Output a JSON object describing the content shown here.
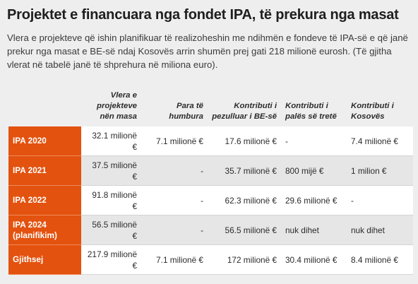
{
  "title": "Projektet e financuara nga fondet IPA, të prekura nga masat",
  "intro": "Vlera e projekteve që ishin planifikuar të realizoheshin me ndihmën e fondeve të IPA-së e që janë prekur nga masat e BE-së ndaj Kosovës arrin shumën prej gati 218 milionë eurosh. (Të gjitha vlerat në tabelë janë të shprehura në miliona euro).",
  "table": {
    "headers": [
      "",
      "Vlera e projekteve nën masa",
      "Para të humbura",
      "Kontributi i pezulluar i BE-së",
      "Kontributi i palës së tretë",
      "Kontributi i Kosovës"
    ],
    "rows": [
      {
        "label": "IPA 2020",
        "cells": [
          "32.1 milionë €",
          "7.1 milionë €",
          "17.6 milionë €",
          "-",
          "7.4 milionë €"
        ]
      },
      {
        "label": "IPA 2021",
        "cells": [
          "37.5 milionë €",
          "-",
          "35.7 milionë €",
          "800 mijë €",
          "1 milion €"
        ]
      },
      {
        "label": "IPA 2022",
        "cells": [
          "91.8 milionë €",
          "-",
          "62.3 milionë €",
          "29.6 milionë €",
          "-"
        ]
      },
      {
        "label": "IPA 2024 (planifikim)",
        "cells": [
          "56.5 milionë €",
          "-",
          "56.5 milionë €",
          "nuk dihet",
          "nuk dihet"
        ]
      },
      {
        "label": "Gjithsej",
        "cells": [
          "217.9 milionë €",
          "7.1 milionë €",
          "172 milionë €",
          "30.4 milionë €",
          "8.4 milionë €"
        ]
      }
    ]
  },
  "colors": {
    "accent": "#e3520f",
    "background": "#eeeeee",
    "row_alt": "#e6e6e6",
    "row": "#ffffff"
  }
}
